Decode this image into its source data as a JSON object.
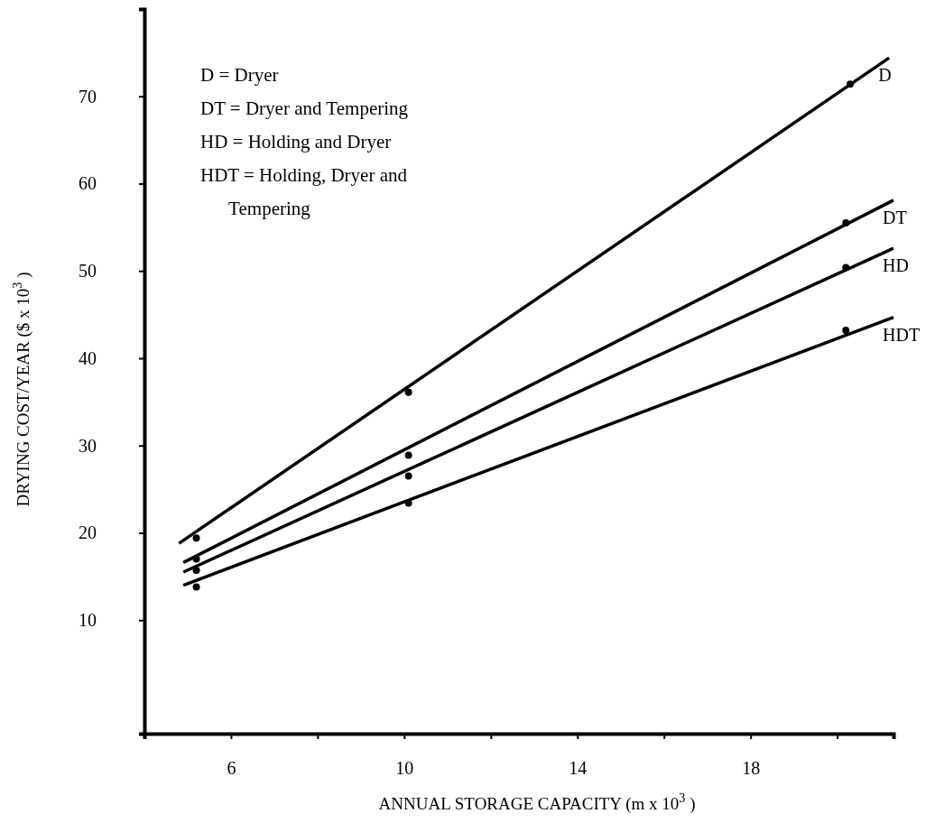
{
  "chart_data": {
    "type": "line",
    "xlabel": "ANNUAL STORAGE CAPACITY (m x 10$^{3}$ )",
    "ylabel": "DRYING COST/YEAR ($ x 10$^{3}$ )",
    "xlim": [
      4,
      21.3
    ],
    "xticks": [
      6,
      {
        "value": 8,
        "label": null
      },
      10,
      {
        "value": 12,
        "label": null
      },
      14,
      {
        "value": 16,
        "label": null
      },
      18,
      {
        "value": 20,
        "label": null
      }
    ],
    "ylim": [
      -3,
      80
    ],
    "yticks": [
      10,
      20,
      30,
      40,
      50,
      60,
      70
    ],
    "grid": false,
    "line_style": "solid",
    "annotations": [
      "D = Dryer",
      "DT = Dryer and Tempering",
      "HD = Holding and Dryer",
      "HDT = Holding, Dryer and\n      Tempering"
    ],
    "series": [
      {
        "name": "D",
        "color": "#000000",
        "x": [
          4.8,
          21.2
        ],
        "values": [
          18.8,
          74.4
        ]
      },
      {
        "name": "DT",
        "color": "#000000",
        "x": [
          4.9,
          21.3
        ],
        "values": [
          16.6,
          58.1
        ]
      },
      {
        "name": "HD",
        "color": "#000000",
        "x": [
          4.9,
          21.3
        ],
        "values": [
          15.5,
          52.6
        ]
      },
      {
        "name": "HDT",
        "color": "#000000",
        "x": [
          4.9,
          21.3
        ],
        "values": [
          14.0,
          44.7
        ]
      },
      {
        "color": "#000000",
        "type": "scatter",
        "marker": "circle",
        "x": [
          5.2,
          10.1,
          20.3
        ],
        "values": [
          19.4,
          36.1,
          71.4
        ]
      },
      {
        "color": "#000000",
        "type": "scatter",
        "marker": "circle",
        "x": [
          5.2,
          10.1,
          20.2
        ],
        "values": [
          17.0,
          28.9,
          55.5
        ]
      },
      {
        "color": "#000000",
        "type": "scatter",
        "marker": "circle",
        "x": [
          5.2,
          10.1,
          20.2
        ],
        "values": [
          15.7,
          26.5,
          50.4
        ]
      },
      {
        "color": "#000000",
        "type": "scatter",
        "marker": "circle",
        "x": [
          5.2,
          10.1,
          20.2
        ],
        "values": [
          13.8,
          23.4,
          43.2
        ]
      }
    ]
  }
}
